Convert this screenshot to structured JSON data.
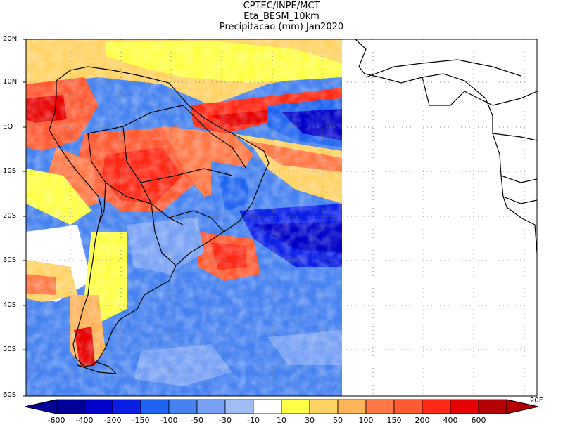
{
  "title": {
    "line1": "CPTEC/INPE/MCT",
    "line2": "Eta_BESM_10km",
    "line3": "Precipitacao (mm) Jan2020"
  },
  "map": {
    "lat_labels": [
      "20N",
      "10N",
      "EQ",
      "10S",
      "20S",
      "30S",
      "40S",
      "50S",
      "60S"
    ],
    "lon_end_label": "20E",
    "grid": "dotted",
    "colorbar": {
      "labels": [
        "-600",
        "-400",
        "-200",
        "-150",
        "-100",
        "-50",
        "-30",
        "-10",
        "10",
        "30",
        "50",
        "100",
        "150",
        "200",
        "400",
        "600"
      ],
      "colors": [
        "#00009a",
        "#0000c8",
        "#0a1ee6",
        "#1e64f0",
        "#4682f0",
        "#78a0f5",
        "#a0bef5",
        "#ffffff",
        "#ffff46",
        "#ffd264",
        "#ffb45a",
        "#ff7846",
        "#ff5a32",
        "#ff2814",
        "#e60000",
        "#b40000"
      ]
    }
  }
}
